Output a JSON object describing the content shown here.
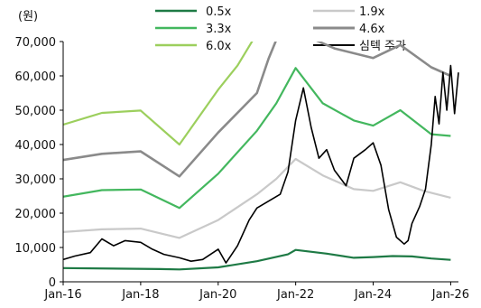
{
  "chart_data": {
    "type": "line",
    "unit_label": "(원)",
    "y_ticks": [
      "70,000",
      "60,000",
      "50,000",
      "40,000",
      "30,000",
      "20,000",
      "10,000",
      "0"
    ],
    "x_ticks": [
      "Jan-16",
      "Jan-18",
      "Jan-20",
      "Jan-22",
      "Jan-24",
      "Jan-26"
    ],
    "ylim": [
      0,
      70000
    ],
    "xlim": [
      2016.0,
      2026.2
    ],
    "grid": false,
    "legend_position": "top",
    "series": [
      {
        "name": "0.5x",
        "color": "#1e7a45",
        "width": 2.2,
        "points": [
          [
            2016.0,
            4000
          ],
          [
            2018.5,
            3700
          ],
          [
            2019.0,
            3600
          ],
          [
            2020.0,
            4200
          ],
          [
            2021.0,
            6000
          ],
          [
            2021.8,
            8000
          ],
          [
            2022.0,
            9300
          ],
          [
            2022.8,
            8200
          ],
          [
            2023.5,
            7000
          ],
          [
            2024.0,
            7200
          ],
          [
            2024.5,
            7500
          ],
          [
            2025.0,
            7400
          ],
          [
            2025.5,
            6800
          ],
          [
            2026.0,
            6400
          ]
        ]
      },
      {
        "name": "1.9x",
        "color": "#c9c9c9",
        "width": 2.2,
        "points": [
          [
            2016.0,
            14500
          ],
          [
            2017.0,
            15300
          ],
          [
            2018.0,
            15500
          ],
          [
            2019.0,
            12800
          ],
          [
            2020.0,
            18000
          ],
          [
            2021.0,
            25500
          ],
          [
            2021.5,
            30000
          ],
          [
            2022.0,
            35800
          ],
          [
            2022.7,
            31000
          ],
          [
            2023.5,
            27000
          ],
          [
            2024.0,
            26500
          ],
          [
            2024.7,
            29000
          ],
          [
            2025.3,
            26500
          ],
          [
            2026.0,
            24500
          ]
        ]
      },
      {
        "name": "3.3x",
        "color": "#43b75e",
        "width": 2.2,
        "points": [
          [
            2016.0,
            24800
          ],
          [
            2017.0,
            26700
          ],
          [
            2018.0,
            26900
          ],
          [
            2019.0,
            21500
          ],
          [
            2020.0,
            31500
          ],
          [
            2021.0,
            44000
          ],
          [
            2021.5,
            52000
          ],
          [
            2022.0,
            62300
          ],
          [
            2022.7,
            52000
          ],
          [
            2023.5,
            47000
          ],
          [
            2024.0,
            45500
          ],
          [
            2024.7,
            50000
          ],
          [
            2025.5,
            43000
          ],
          [
            2026.0,
            42500
          ]
        ]
      },
      {
        "name": "4.6x",
        "color": "#8a8a8a",
        "width": 2.6,
        "points": [
          [
            2016.0,
            35500
          ],
          [
            2017.0,
            37300
          ],
          [
            2018.0,
            38000
          ],
          [
            2019.0,
            30700
          ],
          [
            2020.0,
            43500
          ],
          [
            2021.0,
            55000
          ],
          [
            2021.3,
            65000
          ],
          [
            2021.5,
            70500
          ],
          [
            2022.5,
            70500
          ],
          [
            2023.0,
            68000
          ],
          [
            2024.0,
            65200
          ],
          [
            2024.7,
            69000
          ],
          [
            2025.5,
            62500
          ],
          [
            2026.0,
            60000
          ]
        ]
      },
      {
        "name": "6.0x",
        "color": "#9ccf5d",
        "width": 2.2,
        "points": [
          [
            2016.0,
            45800
          ],
          [
            2017.0,
            49200
          ],
          [
            2018.0,
            49900
          ],
          [
            2019.0,
            40000
          ],
          [
            2020.0,
            56000
          ],
          [
            2020.5,
            63000
          ],
          [
            2020.9,
            70500
          ]
        ]
      },
      {
        "name": "심텍 주가",
        "color": "#000000",
        "width": 1.6,
        "points": [
          [
            2016.0,
            6500
          ],
          [
            2016.3,
            7500
          ],
          [
            2016.7,
            8500
          ],
          [
            2017.0,
            12500
          ],
          [
            2017.3,
            10500
          ],
          [
            2017.6,
            12000
          ],
          [
            2018.0,
            11500
          ],
          [
            2018.3,
            9500
          ],
          [
            2018.6,
            8000
          ],
          [
            2019.0,
            7000
          ],
          [
            2019.3,
            6000
          ],
          [
            2019.6,
            6500
          ],
          [
            2020.0,
            9500
          ],
          [
            2020.2,
            5500
          ],
          [
            2020.5,
            10500
          ],
          [
            2020.8,
            18000
          ],
          [
            2021.0,
            21500
          ],
          [
            2021.3,
            23500
          ],
          [
            2021.6,
            25500
          ],
          [
            2021.8,
            32000
          ],
          [
            2022.0,
            47000
          ],
          [
            2022.2,
            56500
          ],
          [
            2022.4,
            45000
          ],
          [
            2022.6,
            36000
          ],
          [
            2022.8,
            38500
          ],
          [
            2023.0,
            32500
          ],
          [
            2023.3,
            28000
          ],
          [
            2023.5,
            36000
          ],
          [
            2023.8,
            38500
          ],
          [
            2024.0,
            40500
          ],
          [
            2024.2,
            34000
          ],
          [
            2024.4,
            21000
          ],
          [
            2024.6,
            13000
          ],
          [
            2024.8,
            11000
          ],
          [
            2024.9,
            12000
          ],
          [
            2025.0,
            17000
          ],
          [
            2025.2,
            22000
          ],
          [
            2025.35,
            27000
          ],
          [
            2025.5,
            40000
          ],
          [
            2025.6,
            54000
          ],
          [
            2025.7,
            46000
          ],
          [
            2025.8,
            61000
          ],
          [
            2025.9,
            50000
          ],
          [
            2026.0,
            63000
          ],
          [
            2026.1,
            49000
          ],
          [
            2026.2,
            61000
          ]
        ]
      }
    ]
  }
}
